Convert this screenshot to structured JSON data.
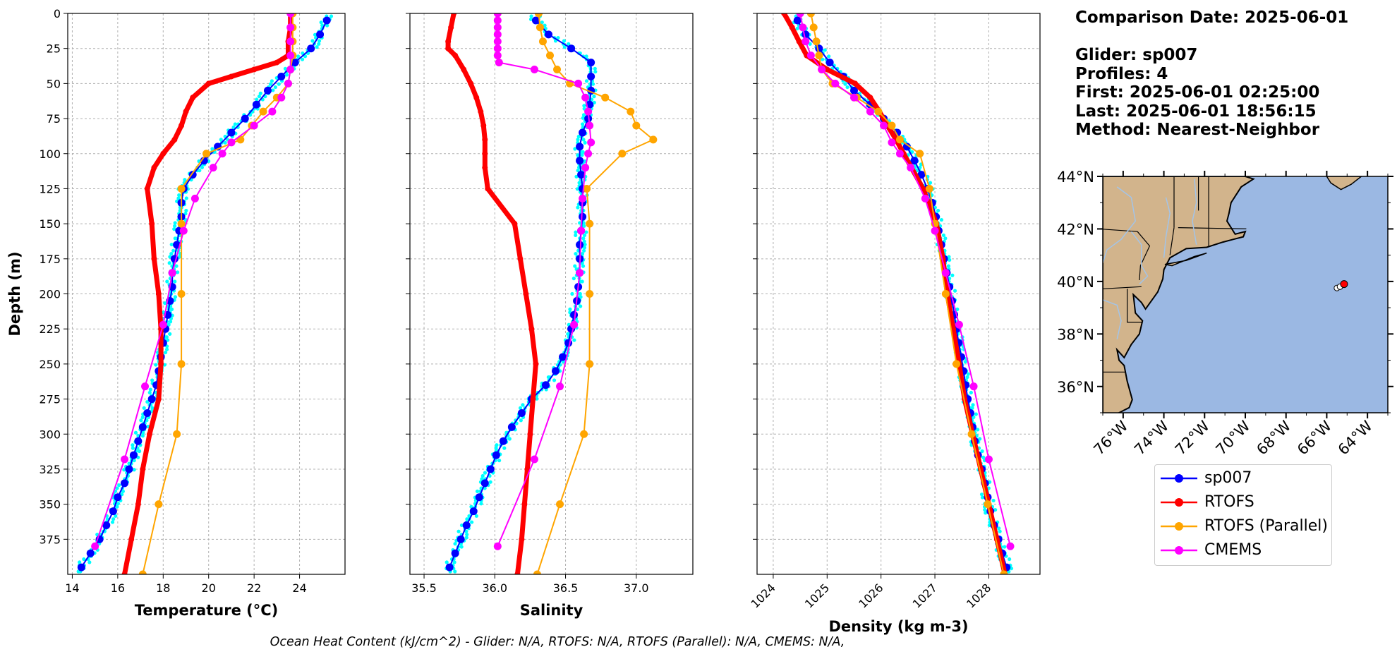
{
  "chart_data": [
    {
      "type": "line",
      "xlabel": "Temperature (°C)",
      "ylabel": "Depth (m)",
      "xlim": [
        13.8,
        26
      ],
      "ylim": [
        400,
        0
      ],
      "xticks": [
        "14",
        "16",
        "18",
        "20",
        "22",
        "24"
      ],
      "yticks": [
        "0",
        "25",
        "50",
        "75",
        "100",
        "125",
        "150",
        "175",
        "200",
        "225",
        "250",
        "275",
        "300",
        "325",
        "350",
        "375"
      ],
      "grid": true,
      "series": [
        {
          "name": "sp007",
          "color": "#0000ff",
          "depth": [
            5,
            15,
            25,
            35,
            45,
            55,
            65,
            75,
            85,
            95,
            105,
            115,
            125,
            135,
            145,
            155,
            165,
            175,
            185,
            195,
            205,
            215,
            225,
            235,
            245,
            255,
            265,
            275,
            285,
            295,
            305,
            315,
            325,
            335,
            345,
            355,
            365,
            375,
            385,
            395
          ],
          "values": [
            25.2,
            24.9,
            24.5,
            23.8,
            23.2,
            22.6,
            22.1,
            21.6,
            21.0,
            20.4,
            19.8,
            19.3,
            18.9,
            18.8,
            18.8,
            18.7,
            18.6,
            18.5,
            18.4,
            18.4,
            18.3,
            18.2,
            18.1,
            18.0,
            17.9,
            17.8,
            17.7,
            17.5,
            17.3,
            17.1,
            16.9,
            16.7,
            16.5,
            16.3,
            16.0,
            15.8,
            15.5,
            15.2,
            14.8,
            14.4
          ]
        },
        {
          "name": "RTOFS",
          "color": "#ff0000",
          "depth": [
            0,
            10,
            20,
            30,
            35,
            40,
            45,
            50,
            60,
            70,
            80,
            90,
            100,
            110,
            125,
            150,
            175,
            200,
            225,
            250,
            275,
            300,
            325,
            350,
            375,
            400
          ],
          "values": [
            23.6,
            23.6,
            23.5,
            23.5,
            23.0,
            22.0,
            21.0,
            20.0,
            19.3,
            19.0,
            18.8,
            18.5,
            18.0,
            17.6,
            17.3,
            17.5,
            17.6,
            17.8,
            17.9,
            17.9,
            17.8,
            17.4,
            17.1,
            16.9,
            16.6,
            16.3
          ]
        },
        {
          "name": "RTOFS (Parallel)",
          "color": "#ffa500",
          "depth": [
            0,
            10,
            20,
            30,
            40,
            50,
            60,
            70,
            80,
            90,
            100,
            125,
            150,
            200,
            250,
            300,
            350,
            400
          ],
          "values": [
            23.7,
            23.7,
            23.7,
            23.7,
            23.6,
            23.5,
            23.0,
            22.4,
            21.9,
            21.4,
            19.9,
            18.8,
            18.8,
            18.8,
            18.8,
            18.6,
            17.8,
            17.1
          ]
        },
        {
          "name": "CMEMS",
          "color": "#ff00ff",
          "depth": [
            0,
            10,
            20,
            30,
            40,
            50,
            60,
            70,
            80,
            92,
            100,
            110,
            132,
            155,
            185,
            222,
            266,
            318,
            380
          ],
          "values": [
            23.6,
            23.6,
            23.6,
            23.6,
            23.6,
            23.5,
            23.2,
            22.8,
            22.0,
            21.0,
            20.6,
            20.2,
            19.4,
            18.9,
            18.4,
            18.0,
            17.2,
            16.3,
            15.0
          ]
        }
      ]
    },
    {
      "type": "line",
      "xlabel": "Salinity",
      "xlim": [
        35.4,
        37.4
      ],
      "ylim": [
        400,
        0
      ],
      "xticks": [
        "35.5",
        "36.0",
        "36.5",
        "37.0"
      ],
      "grid": true,
      "series": [
        {
          "name": "sp007",
          "color": "#0000ff",
          "depth": [
            5,
            15,
            25,
            35,
            45,
            55,
            65,
            75,
            85,
            95,
            105,
            115,
            125,
            135,
            145,
            155,
            165,
            175,
            185,
            195,
            205,
            215,
            225,
            235,
            245,
            255,
            265,
            275,
            285,
            295,
            305,
            315,
            325,
            335,
            345,
            355,
            365,
            375,
            385,
            395
          ],
          "values": [
            36.29,
            36.38,
            36.54,
            36.68,
            36.68,
            36.68,
            36.67,
            36.66,
            36.62,
            36.6,
            36.6,
            36.61,
            36.62,
            36.62,
            36.62,
            36.61,
            36.6,
            36.6,
            36.6,
            36.59,
            36.58,
            36.56,
            36.54,
            36.52,
            36.48,
            36.43,
            36.36,
            36.26,
            36.19,
            36.12,
            36.06,
            36.01,
            35.97,
            35.93,
            35.89,
            35.85,
            35.8,
            35.76,
            35.72,
            35.68
          ]
        },
        {
          "name": "RTOFS",
          "color": "#ff0000",
          "depth": [
            0,
            10,
            20,
            25,
            30,
            40,
            50,
            60,
            70,
            80,
            90,
            100,
            110,
            125,
            150,
            175,
            200,
            225,
            250,
            275,
            300,
            325,
            350,
            375,
            400
          ],
          "values": [
            35.71,
            35.69,
            35.67,
            35.67,
            35.72,
            35.78,
            35.83,
            35.87,
            35.9,
            35.92,
            35.93,
            35.93,
            35.93,
            35.95,
            36.14,
            36.18,
            36.22,
            36.26,
            36.29,
            36.27,
            36.25,
            36.23,
            36.21,
            36.19,
            36.16
          ]
        },
        {
          "name": "RTOFS (Parallel)",
          "color": "#ffa500",
          "depth": [
            0,
            10,
            20,
            30,
            40,
            50,
            60,
            70,
            80,
            90,
            100,
            125,
            150,
            200,
            250,
            300,
            350,
            400
          ],
          "values": [
            36.31,
            36.32,
            36.34,
            36.39,
            36.44,
            36.53,
            36.78,
            36.96,
            37.0,
            37.12,
            36.9,
            36.65,
            36.67,
            36.67,
            36.67,
            36.63,
            36.46,
            36.3
          ]
        },
        {
          "name": "CMEMS",
          "color": "#ff00ff",
          "depth": [
            0,
            5,
            10,
            15,
            20,
            25,
            30,
            35,
            40,
            50,
            60,
            70,
            80,
            92,
            100,
            110,
            132,
            155,
            185,
            222,
            266,
            318,
            380
          ],
          "values": [
            36.02,
            36.02,
            36.02,
            36.02,
            36.02,
            36.02,
            36.02,
            36.03,
            36.28,
            36.59,
            36.64,
            36.66,
            36.67,
            36.68,
            36.66,
            36.64,
            36.62,
            36.61,
            36.6,
            36.56,
            36.46,
            36.28,
            36.02
          ]
        }
      ]
    },
    {
      "type": "line",
      "xlabel": "Density (kg m-3)",
      "xlim": [
        1023.7,
        1028.95
      ],
      "ylim": [
        400,
        0
      ],
      "xticks": [
        "1024",
        "1025",
        "1026",
        "1027",
        "1028"
      ],
      "grid": true,
      "series": [
        {
          "name": "sp007",
          "color": "#0000ff",
          "depth": [
            5,
            15,
            25,
            35,
            45,
            55,
            65,
            75,
            85,
            95,
            105,
            115,
            125,
            135,
            145,
            155,
            165,
            175,
            185,
            195,
            205,
            215,
            225,
            235,
            245,
            255,
            265,
            275,
            285,
            295,
            305,
            315,
            325,
            335,
            345,
            355,
            365,
            375,
            385,
            395
          ],
          "values": [
            1024.45,
            1024.6,
            1024.85,
            1025.05,
            1025.3,
            1025.5,
            1025.8,
            1026.05,
            1026.3,
            1026.48,
            1026.62,
            1026.75,
            1026.86,
            1026.95,
            1027.02,
            1027.07,
            1027.12,
            1027.17,
            1027.22,
            1027.27,
            1027.32,
            1027.36,
            1027.4,
            1027.44,
            1027.49,
            1027.53,
            1027.57,
            1027.61,
            1027.66,
            1027.7,
            1027.74,
            1027.8,
            1027.87,
            1027.93,
            1027.98,
            1028.03,
            1028.1,
            1028.18,
            1028.25,
            1028.33
          ]
        },
        {
          "name": "RTOFS",
          "color": "#ff0000",
          "depth": [
            0,
            10,
            20,
            30,
            40,
            50,
            60,
            70,
            80,
            90,
            100,
            125,
            150,
            175,
            200,
            225,
            250,
            275,
            300,
            325,
            350,
            375,
            400
          ],
          "values": [
            1024.2,
            1024.35,
            1024.48,
            1024.62,
            1025.0,
            1025.52,
            1025.8,
            1025.97,
            1026.12,
            1026.28,
            1026.42,
            1026.78,
            1027.03,
            1027.15,
            1027.23,
            1027.34,
            1027.45,
            1027.55,
            1027.7,
            1027.85,
            1028.0,
            1028.15,
            1028.3
          ]
        },
        {
          "name": "RTOFS (Parallel)",
          "color": "#ffa500",
          "depth": [
            0,
            10,
            20,
            30,
            40,
            50,
            60,
            70,
            80,
            90,
            100,
            125,
            150,
            200,
            250,
            300,
            350,
            400
          ],
          "values": [
            1024.7,
            1024.75,
            1024.8,
            1024.85,
            1024.9,
            1025.1,
            1025.55,
            1025.95,
            1026.2,
            1026.35,
            1026.72,
            1026.9,
            1027.0,
            1027.2,
            1027.4,
            1027.68,
            1027.98,
            1028.28
          ]
        },
        {
          "name": "CMEMS",
          "color": "#ff00ff",
          "depth": [
            0,
            10,
            20,
            30,
            40,
            50,
            60,
            70,
            80,
            92,
            100,
            110,
            132,
            155,
            185,
            222,
            266,
            318,
            380
          ],
          "values": [
            1024.5,
            1024.55,
            1024.6,
            1024.7,
            1024.9,
            1025.15,
            1025.5,
            1025.8,
            1026.05,
            1026.2,
            1026.35,
            1026.55,
            1026.82,
            1027.0,
            1027.2,
            1027.45,
            1027.72,
            1028.0,
            1028.4
          ]
        }
      ]
    }
  ],
  "cyan_series_color": "#00ffff",
  "map": {
    "lat_ticks": [
      "44°N",
      "42°N",
      "40°N",
      "38°N",
      "36°N"
    ],
    "lon_ticks": [
      "76°W",
      "74°W",
      "72°W",
      "70°W",
      "68°W",
      "66°W",
      "64°W"
    ],
    "ocean_color": "#9bb8e3",
    "land_color": "#d2b48c"
  },
  "info": {
    "date_line": "Comparison Date: 2025-06-01",
    "glider_line": "Glider: sp007",
    "profiles_line": "Profiles: 4",
    "first_line": "First: 2025-06-01 02:25:00",
    "last_line": "Last: 2025-06-01 18:56:15",
    "method_line": "Method: Nearest-Neighbor"
  },
  "legend": [
    {
      "label": "sp007",
      "color": "#0000ff"
    },
    {
      "label": "RTOFS",
      "color": "#ff0000"
    },
    {
      "label": "RTOFS (Parallel)",
      "color": "#ffa500"
    },
    {
      "label": "CMEMS",
      "color": "#ff00ff"
    }
  ],
  "footer": "Ocean Heat Content (kJ/cm^2) - Glider: N/A,  RTOFS: N/A,  RTOFS (Parallel): N/A,  CMEMS: N/A,"
}
